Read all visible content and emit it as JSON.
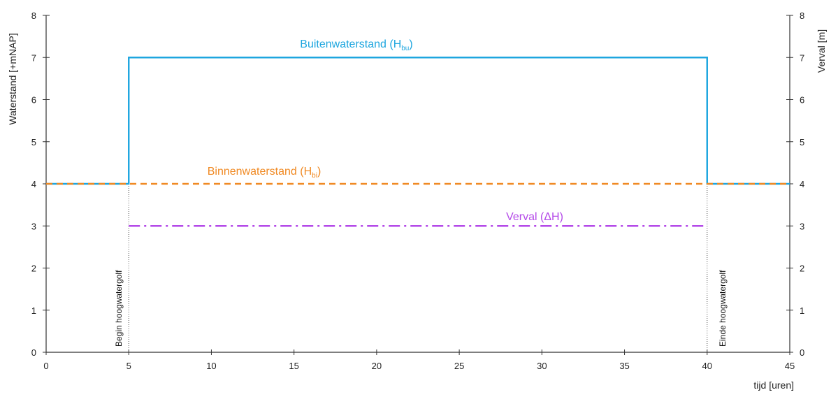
{
  "chart_data": {
    "type": "line",
    "xlabel": "tijd [uren]",
    "ylabel_left": "Waterstand [+mNAP]",
    "ylabel_right": "Verval [m]",
    "xlim": [
      0,
      45
    ],
    "ylim": [
      0,
      8
    ],
    "x_ticks": [
      0,
      5,
      10,
      15,
      20,
      25,
      30,
      35,
      40,
      45
    ],
    "y_ticks": [
      0,
      1,
      2,
      3,
      4,
      5,
      6,
      7,
      8
    ],
    "grid": false,
    "series": [
      {
        "name": "Buitenwaterstand",
        "name_subscript": "bu",
        "label": "Buitenwaterstand (Hbu)",
        "color": "#1EA6DF",
        "style": "solid",
        "x": [
          0,
          5,
          5,
          40,
          40,
          45
        ],
        "y": [
          4,
          4,
          7,
          7,
          4,
          4
        ]
      },
      {
        "name": "Binnenwaterstand",
        "name_subscript": "bi",
        "label": "Binnenwaterstand (Hbi)",
        "color": "#F08A24",
        "style": "dashed",
        "x": [
          0,
          45
        ],
        "y": [
          4,
          4
        ]
      },
      {
        "name": "Verval (ΔH)",
        "label": "Verval (ΔH)",
        "color": "#B44AE8",
        "style": "dashdot",
        "x": [
          5,
          40
        ],
        "y": [
          3,
          3
        ]
      }
    ],
    "annotations": [
      {
        "text": "Begin hoogwatergolf",
        "x": 5
      },
      {
        "text": "Einde hoogwatergolf",
        "x": 40
      }
    ]
  }
}
